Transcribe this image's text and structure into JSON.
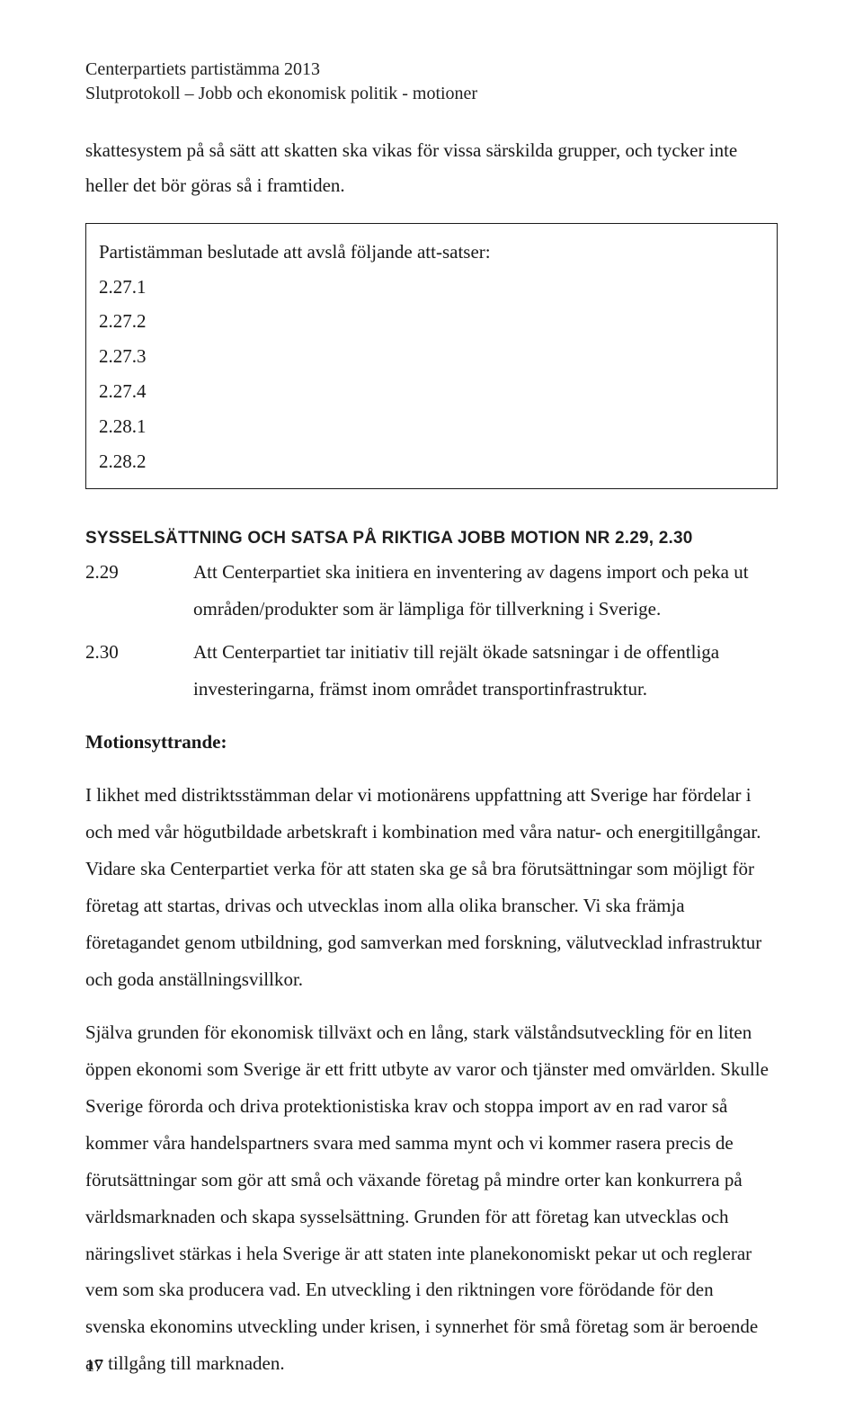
{
  "header": {
    "line1": "Centerpartiets partistämma 2013",
    "line2": "Slutprotokoll – Jobb och ekonomisk politik - motioner"
  },
  "intro": "skattesystem på så sätt att skatten ska vikas för vissa särskilda grupper, och tycker inte heller det bör göras så i framtiden.",
  "decision": {
    "title": "Partistämman beslutade att avslå följande att-satser:",
    "items": [
      "2.27.1",
      "2.27.2",
      "2.27.3",
      "2.27.4",
      "2.28.1",
      "2.28.2"
    ]
  },
  "section": {
    "title": "SYSSELSÄTTNING OCH SATSA PÅ RIKTIGA JOBB MOTION NR 2.29, 2.30",
    "motions": [
      {
        "num": "2.29",
        "text": "Att Centerpartiet ska initiera en inventering av dagens import och peka ut områden/produkter som är lämpliga för tillverkning i Sverige."
      },
      {
        "num": "2.30",
        "text": "Att Centerpartiet tar initiativ till rejält ökade satsningar i de offentliga investeringarna, främst inom området transportinfrastruktur."
      }
    ],
    "mo_label": "Motionsyttrande:",
    "paragraphs": [
      "I likhet med distriktsstämman delar vi motionärens uppfattning att Sverige har fördelar i och med vår högutbildade arbetskraft i kombination med våra natur- och energitillgångar. Vidare ska Centerpartiet verka för att staten ska ge så bra förutsättningar som möjligt för företag att startas, drivas och utvecklas inom alla olika branscher. Vi ska främja företagandet genom utbildning, god samverkan med forskning, välutvecklad infrastruktur och goda anställningsvillkor.",
      "Själva grunden för ekonomisk tillväxt och en lång, stark välståndsutveckling för en liten öppen ekonomi som Sverige är ett fritt utbyte av varor och tjänster med omvärlden. Skulle Sverige förorda och driva protektionistiska krav och stoppa import av en rad varor så kommer våra handelspartners svara med samma mynt och vi kommer rasera precis de förutsättningar som gör att små och växande företag på mindre orter kan konkurrera på världsmarknaden och skapa sysselsättning. Grunden för att företag kan utvecklas och näringslivet stärkas i hela Sverige är att staten inte planekonomiskt pekar ut och reglerar vem som ska producera vad. En utveckling i den riktningen vore förödande för den svenska ekonomins utveckling under krisen, i synnerhet för små företag som är beroende av tillgång till marknaden."
    ]
  },
  "page_number": "17",
  "colors": {
    "text": "#181818",
    "background": "#ffffff",
    "box_border": "#1a1a1a"
  },
  "typography": {
    "body_font": "Garamond/Times serif",
    "body_size_pt": 16,
    "heading_font": "Trebuchet-like sans-serif",
    "heading_size_pt": 14,
    "heading_weight": "bold"
  }
}
